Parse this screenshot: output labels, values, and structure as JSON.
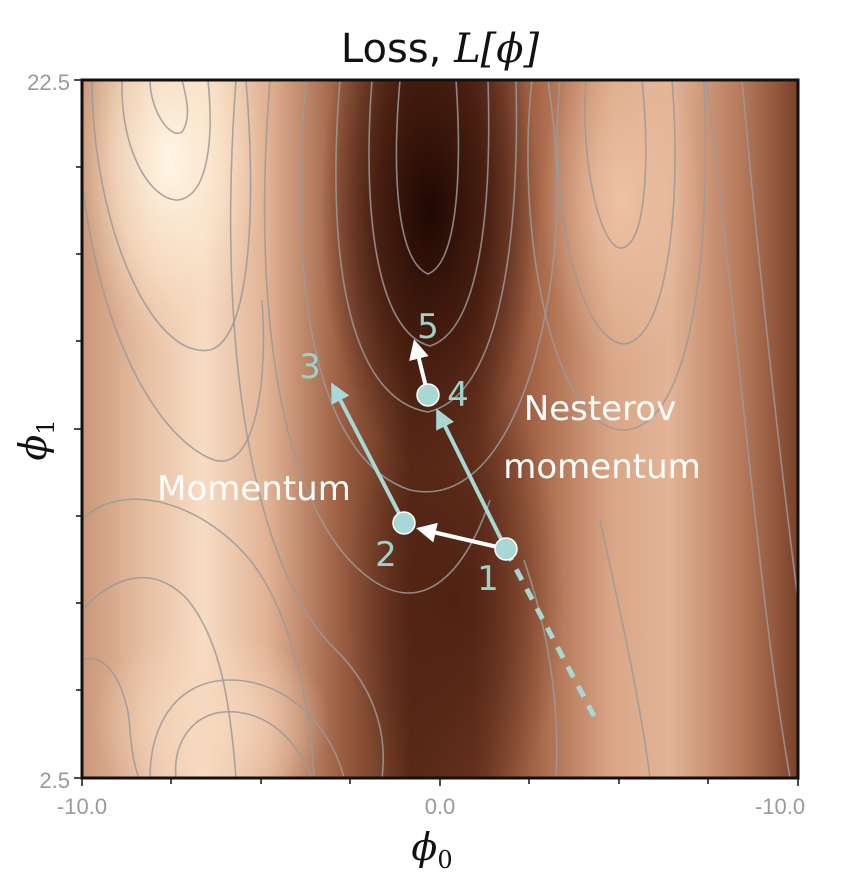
{
  "title": {
    "prefix": "Loss, ",
    "symbol": "L[ϕ]"
  },
  "axes": {
    "x_label": "ϕ",
    "x_label_sub": "0",
    "y_label": "ϕ",
    "y_label_sub": "1",
    "x_ticks": [
      "-10.0",
      "0.0",
      "-10.0"
    ],
    "y_ticks": [
      "22.5",
      "2.5"
    ]
  },
  "annotations": {
    "momentum": "Momentum",
    "nesterov_line1": "Nesterov",
    "nesterov_line2": "momentum"
  },
  "steps": [
    "1",
    "2",
    "3",
    "4",
    "5"
  ],
  "colors": {
    "step_marker": "#a9d8d4",
    "step_label": "#9fd0cc",
    "arrow_white": "#ffffff",
    "contour": "#9a9a9a",
    "surface_dark": "#2a0d06",
    "surface_light": "#fff6e4"
  }
}
